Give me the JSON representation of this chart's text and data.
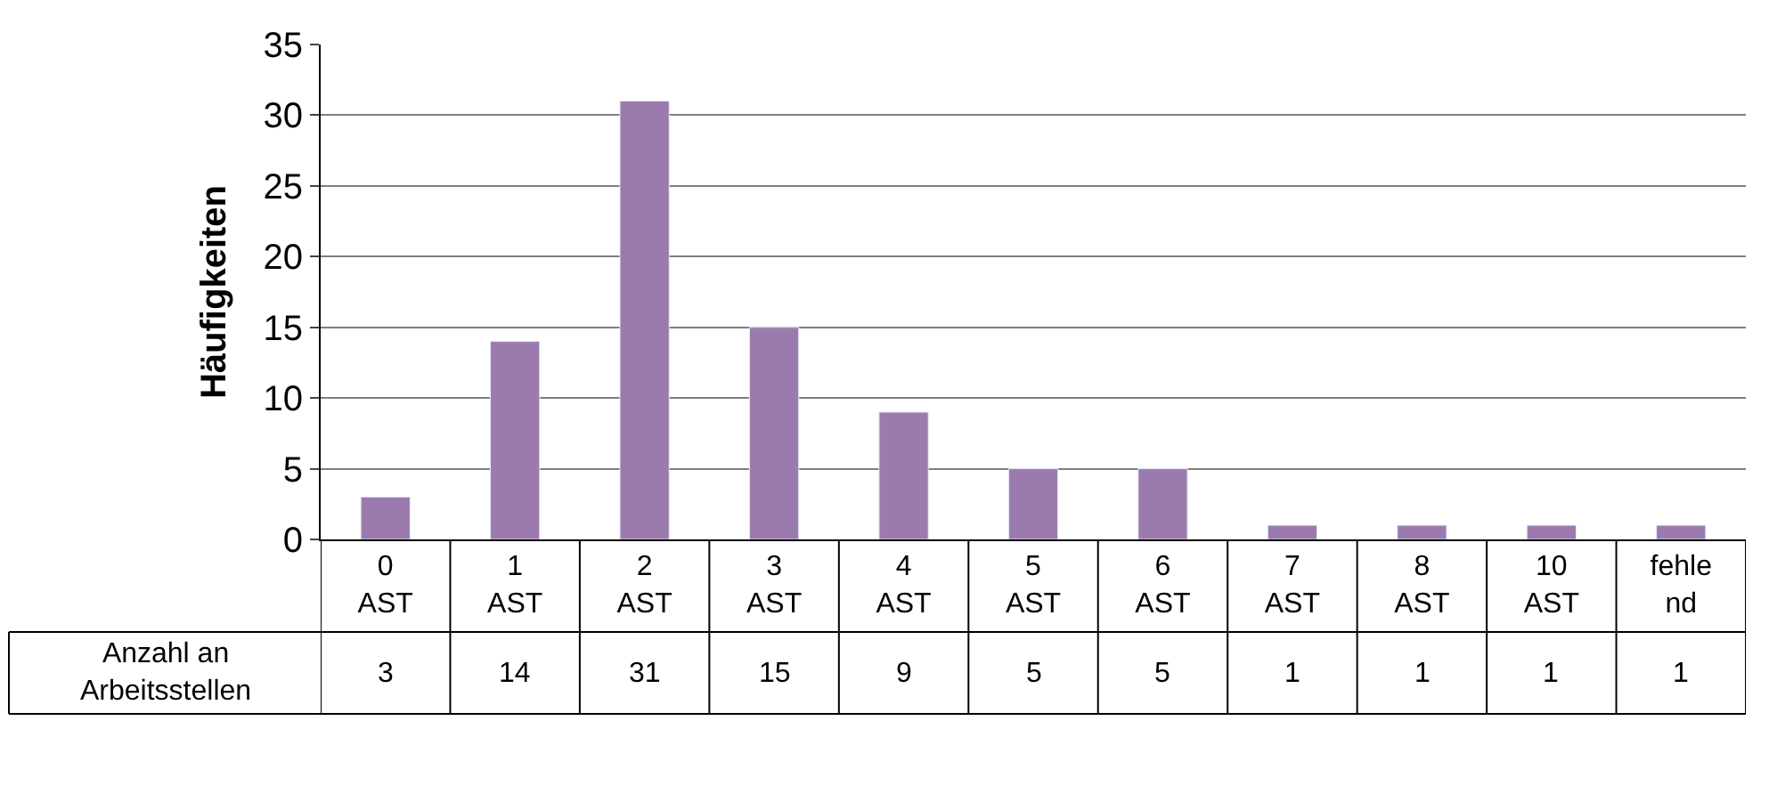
{
  "chart_data": {
    "type": "bar",
    "ylabel": "Häufigkeiten",
    "categories": [
      "0 AST",
      "1 AST",
      "2 AST",
      "3 AST",
      "4 AST",
      "5 AST",
      "6 AST",
      "7 AST",
      "8 AST",
      "10 AST",
      "fehlend"
    ],
    "series": [
      {
        "name": "Anzahl an Arbeitsstellen",
        "color": "#9b7bad",
        "values": [
          3,
          14,
          31,
          15,
          9,
          5,
          5,
          1,
          1,
          1,
          1
        ]
      }
    ],
    "ylim": [
      0,
      35
    ],
    "yticks": [
      0,
      5,
      10,
      15,
      20,
      25,
      30,
      35
    ],
    "grid": "y",
    "data_labels": true,
    "legend": false
  }
}
